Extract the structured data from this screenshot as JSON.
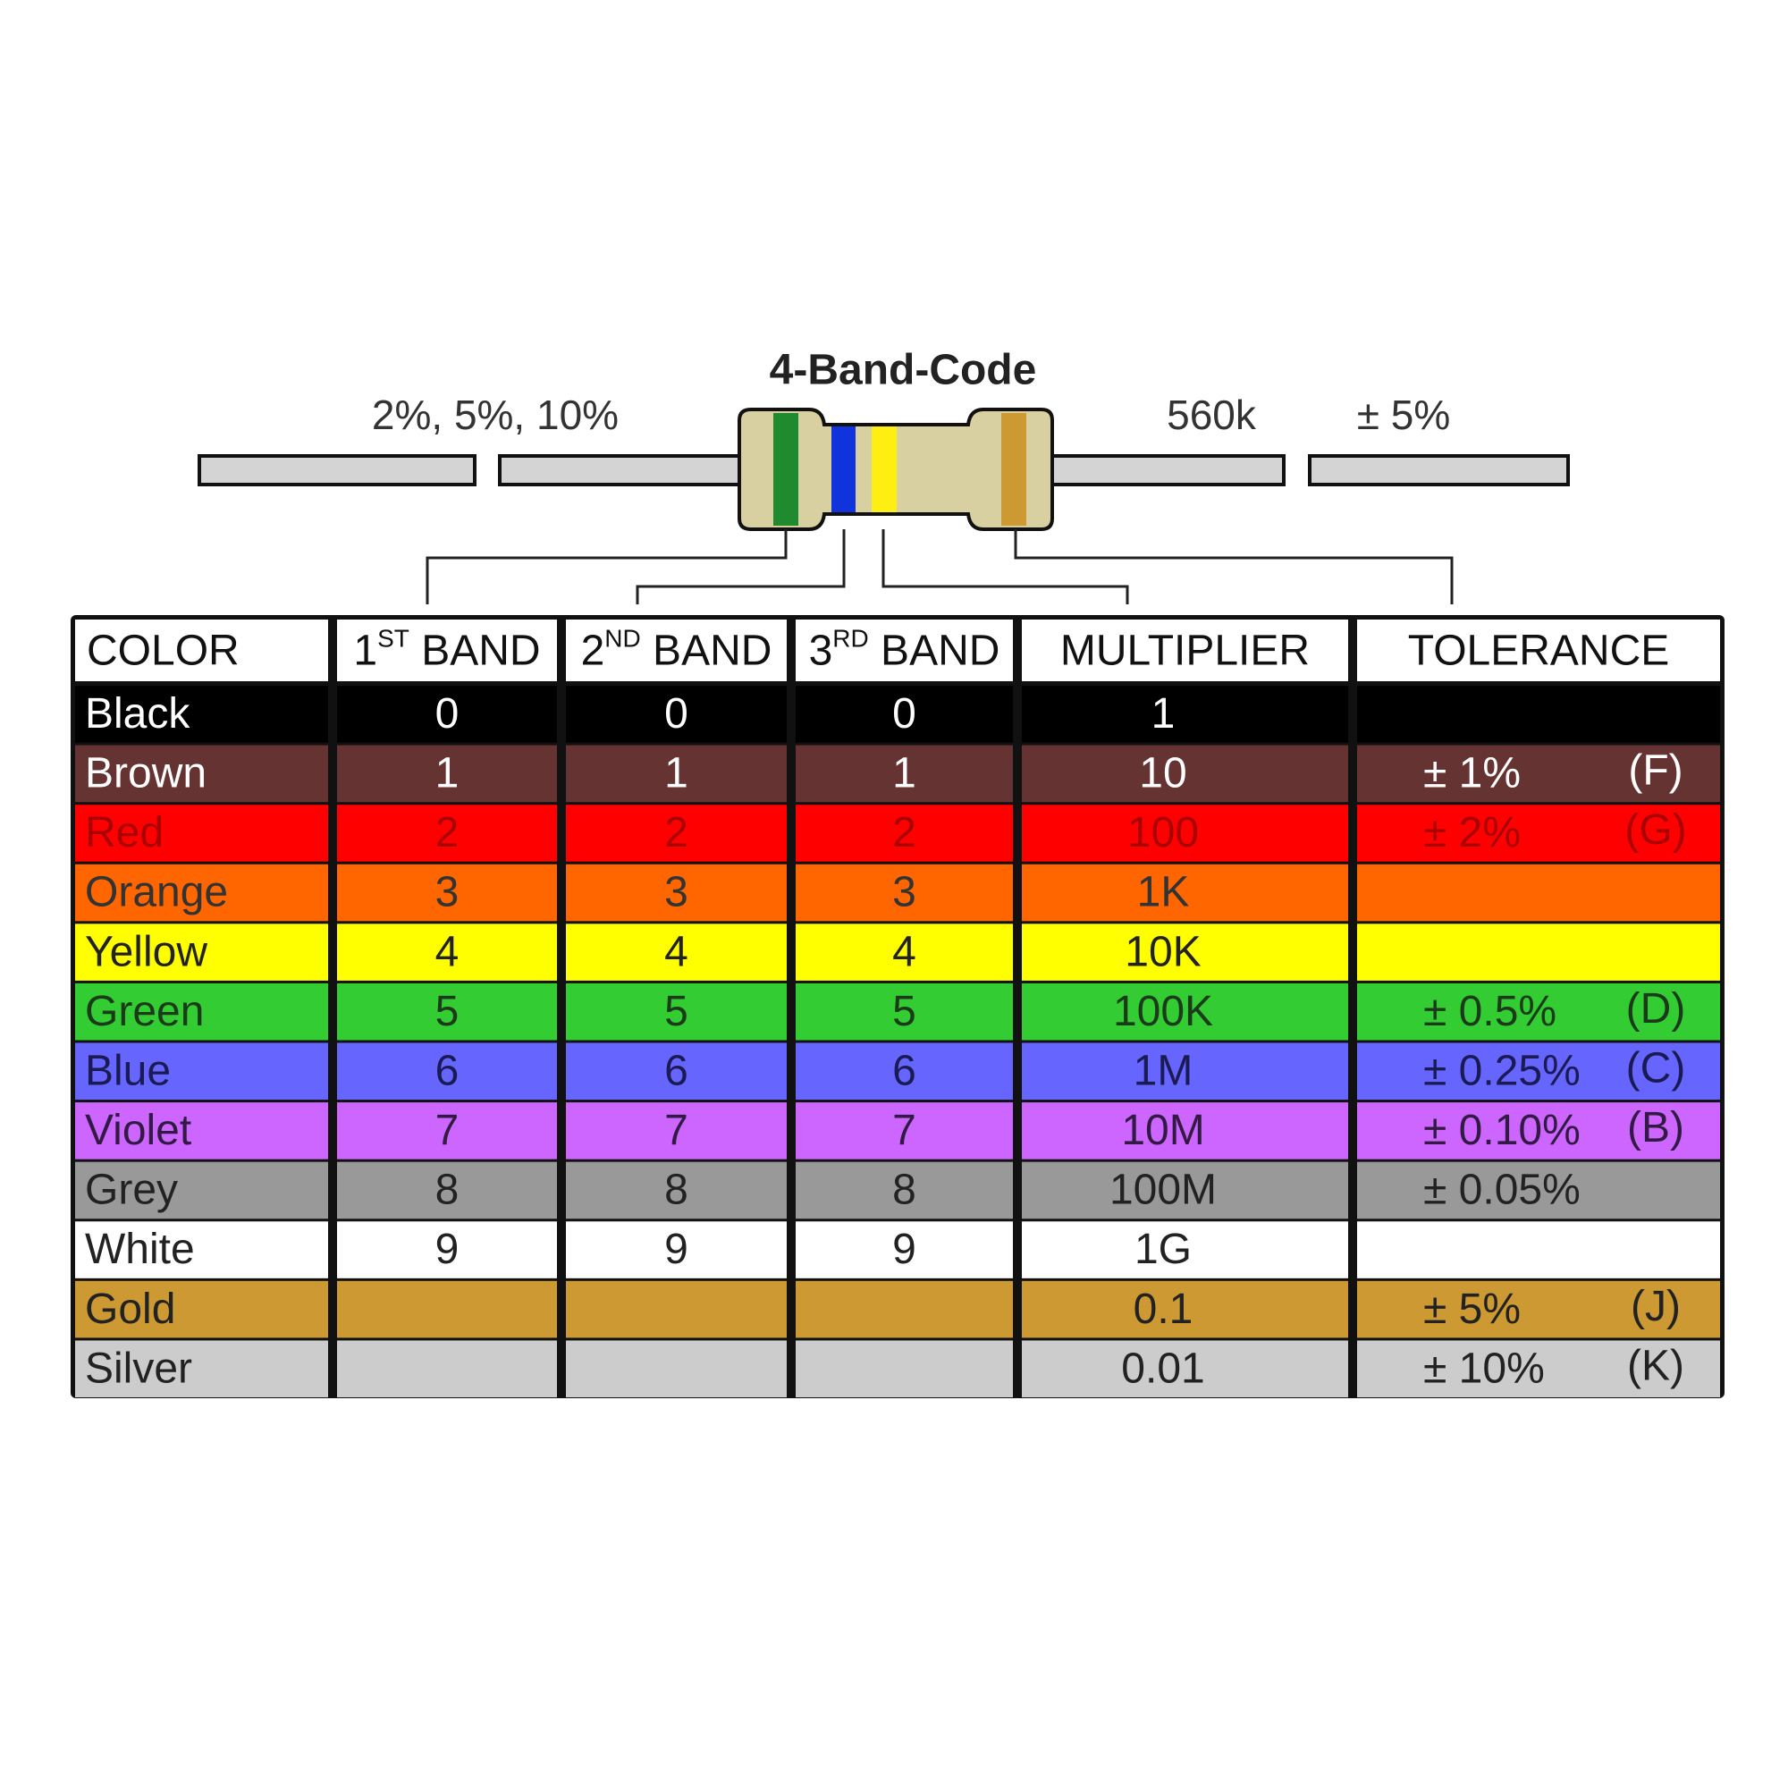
{
  "title": "4-Band-Code",
  "labels": {
    "tolerance_range": "2%, 5%, 10%",
    "value": "560k",
    "tolerance": "± 5%"
  },
  "table": {
    "headers": [
      {
        "text": "COLOR"
      },
      {
        "number": "1",
        "suffix": "ST",
        "text": "BAND"
      },
      {
        "number": "2",
        "suffix": "ND",
        "text": "BAND"
      },
      {
        "number": "3",
        "suffix": "RD",
        "text": "BAND"
      },
      {
        "text": "MULTIPLIER"
      },
      {
        "text": "TOLERANCE"
      }
    ],
    "rows": [
      {
        "name": "Black",
        "bg": "#000000",
        "fg": "#ffffff",
        "bands": [
          0,
          0,
          0
        ],
        "multiplier": "1"
      },
      {
        "name": "Brown",
        "bg": "#663333",
        "fg": "#ffffff",
        "bands": [
          1,
          1,
          1
        ],
        "multiplier": "10",
        "tolerance": "± 1%",
        "code": "(F)"
      },
      {
        "name": "Red",
        "bg": "#ff0000",
        "fg": "#aa0000",
        "bands": [
          2,
          2,
          2
        ],
        "multiplier": "100",
        "tolerance": "± 2%",
        "code": "(G)"
      },
      {
        "name": "Orange",
        "bg": "#ff6600",
        "fg": "#333333",
        "bands": [
          3,
          3,
          3
        ],
        "multiplier": "1K"
      },
      {
        "name": "Yellow",
        "bg": "#ffff00",
        "fg": "#222222",
        "bands": [
          4,
          4,
          4
        ],
        "multiplier": "10K"
      },
      {
        "name": "Green",
        "bg": "#33cc33",
        "fg": "#1a3a1a",
        "bands": [
          5,
          5,
          5
        ],
        "multiplier": "100K",
        "tolerance": "± 0.5%",
        "code": "(D)"
      },
      {
        "name": "Blue",
        "bg": "#6666ff",
        "fg": "#1a1a55",
        "bands": [
          6,
          6,
          6
        ],
        "multiplier": "1M",
        "tolerance": "± 0.25%",
        "code": "(C)"
      },
      {
        "name": "Violet",
        "bg": "#cc66ff",
        "fg": "#331a44",
        "bands": [
          7,
          7,
          7
        ],
        "multiplier": "10M",
        "tolerance": "± 0.10%",
        "code": "(B)"
      },
      {
        "name": "Grey",
        "bg": "#999999",
        "fg": "#222222",
        "bands": [
          8,
          8,
          8
        ],
        "multiplier": "100M",
        "tolerance": "± 0.05%"
      },
      {
        "name": "White",
        "bg": "#ffffff",
        "fg": "#222222",
        "bands": [
          9,
          9,
          9
        ],
        "multiplier": "1G"
      },
      {
        "name": "Gold",
        "bg": "#cc9933",
        "fg": "#222222",
        "multiplier": "0.1",
        "tolerance": "± 5%",
        "code": "(J)"
      },
      {
        "name": "Silver",
        "bg": "#cccccc",
        "fg": "#222222",
        "multiplier": "0.01",
        "tolerance": "± 10%",
        "code": "(K)"
      }
    ]
  }
}
